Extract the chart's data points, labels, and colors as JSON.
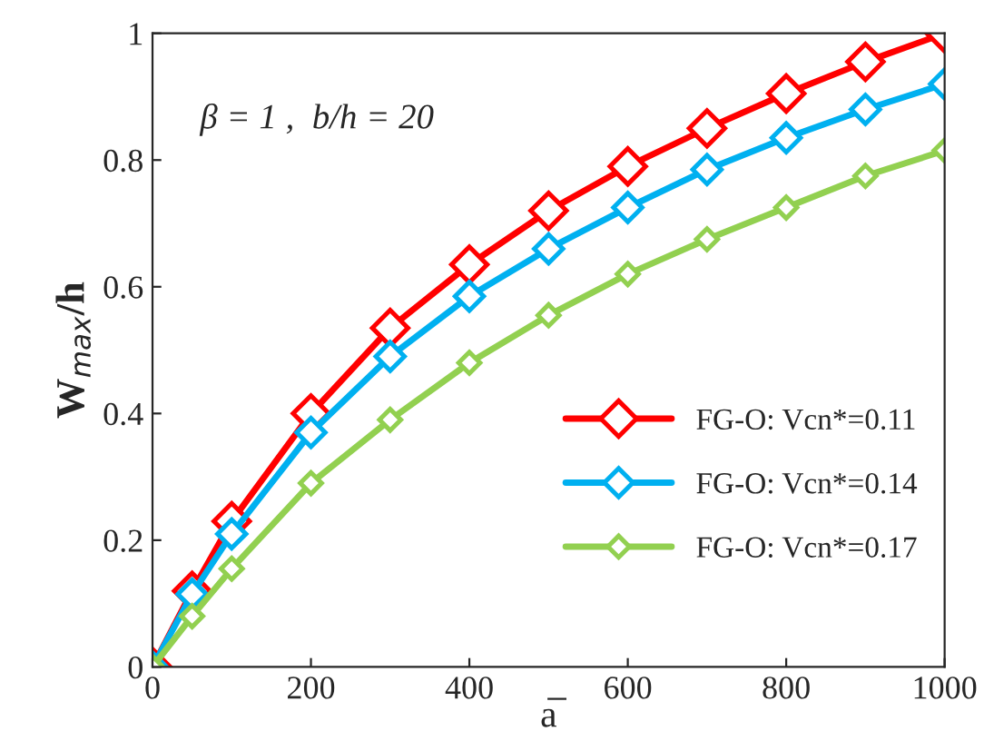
{
  "chart_data": {
    "type": "line",
    "xlabel": "a̅",
    "ylabel": "W$_{max}$/h",
    "x": [
      0,
      50,
      100,
      200,
      300,
      400,
      500,
      600,
      700,
      800,
      900,
      1000
    ],
    "series": [
      {
        "name": "FG-O: Vcn*=0.11",
        "color": "#ff0000",
        "values": [
          0,
          0.12,
          0.23,
          0.4,
          0.535,
          0.635,
          0.72,
          0.79,
          0.85,
          0.905,
          0.955,
          1.0
        ]
      },
      {
        "name": "FG-O: Vcn*=0.14",
        "color": "#00b0f0",
        "values": [
          0,
          0.115,
          0.21,
          0.37,
          0.49,
          0.585,
          0.66,
          0.725,
          0.785,
          0.835,
          0.88,
          0.92
        ]
      },
      {
        "name": "FG-O: Vcn*=0.17",
        "color": "#92d050",
        "values": [
          0,
          0.08,
          0.155,
          0.29,
          0.39,
          0.48,
          0.555,
          0.62,
          0.675,
          0.725,
          0.775,
          0.815
        ]
      }
    ],
    "annotations": [
      "β = 1 ,  b/h = 20"
    ],
    "xlim": [
      0,
      1000
    ],
    "ylim": [
      0,
      1
    ],
    "xticks": [
      0,
      200,
      400,
      600,
      800,
      1000
    ],
    "yticks": [
      0,
      0.2,
      0.4,
      0.6,
      0.8,
      1
    ],
    "marker": "diamond",
    "line_style": "solid",
    "legend": "bottom right",
    "grid": false
  }
}
